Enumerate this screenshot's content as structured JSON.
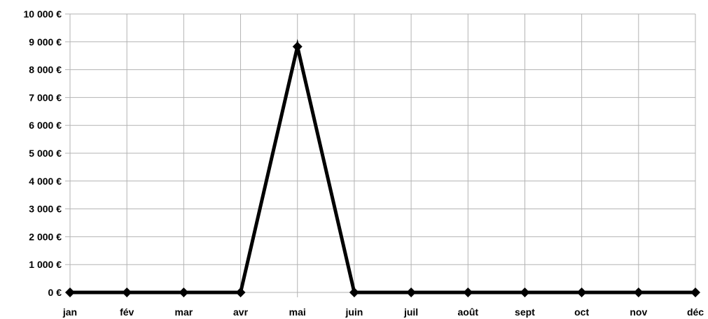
{
  "chart_data": {
    "type": "line",
    "title": "",
    "xlabel": "",
    "ylabel": "",
    "categories": [
      "jan",
      "fév",
      "mar",
      "avr",
      "mai",
      "juin",
      "juil",
      "août",
      "sept",
      "oct",
      "nov",
      "déc"
    ],
    "series": [
      {
        "values": [
          0,
          0,
          0,
          0,
          8830,
          0,
          0,
          0,
          0,
          0,
          0,
          0
        ]
      }
    ],
    "ylim": [
      0,
      10000
    ],
    "yticks": [
      0,
      1000,
      2000,
      3000,
      4000,
      5000,
      6000,
      7000,
      8000,
      9000,
      10000
    ],
    "ytick_labels": [
      "0 €",
      "1 000 €",
      "2 000 €",
      "3 000 €",
      "4 000 €",
      "5 000 €",
      "6 000 €",
      "7 000 €",
      "8 000 €",
      "9 000 €",
      "10 000 €"
    ],
    "grid": true,
    "legend": "none",
    "line_color": "#000000",
    "marker": "diamond",
    "grid_color": "#b3b3b3"
  }
}
